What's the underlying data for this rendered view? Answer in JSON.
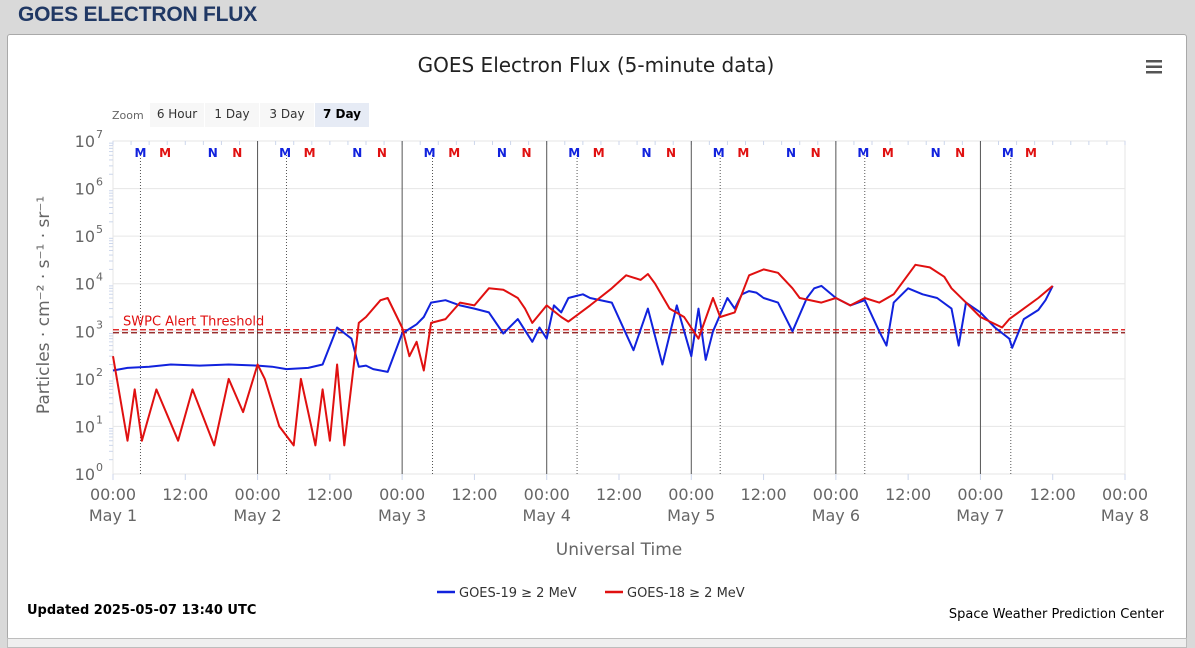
{
  "header": {
    "title": "GOES ELECTRON FLUX"
  },
  "zoom": {
    "label": "Zoom",
    "buttons": [
      {
        "label": "6 Hour",
        "active": false
      },
      {
        "label": "1 Day",
        "active": false
      },
      {
        "label": "3 Day",
        "active": false
      },
      {
        "label": "7 Day",
        "active": true
      }
    ]
  },
  "footer": {
    "updated": "Updated 2025-05-07 13:40 UTC",
    "credit": "Space Weather Prediction Center"
  },
  "colors": {
    "goes19": "#1122dd",
    "goes18": "#e01010",
    "grid": "#e6e6e6",
    "axis_text": "#666666"
  },
  "menu_icon": "hamburger-menu-icon",
  "chart_data": {
    "type": "line",
    "title": "GOES Electron Flux (5-minute data)",
    "xlabel": "Universal Time",
    "ylabel": "Particles · cm⁻² · s⁻¹ · sr⁻¹",
    "y_scale": "log",
    "ylim": [
      1,
      10000000
    ],
    "xlim": [
      "2025-05-01 00:00",
      "2025-05-08 00:00"
    ],
    "y_ticks": [
      {
        "base": "10",
        "exp": "0"
      },
      {
        "base": "10",
        "exp": "1"
      },
      {
        "base": "10",
        "exp": "2"
      },
      {
        "base": "10",
        "exp": "3"
      },
      {
        "base": "10",
        "exp": "4"
      },
      {
        "base": "10",
        "exp": "5"
      },
      {
        "base": "10",
        "exp": "6"
      },
      {
        "base": "10",
        "exp": "7"
      }
    ],
    "x_ticks": [
      {
        "time": "00:00",
        "date": "May 1"
      },
      {
        "time": "12:00",
        "date": ""
      },
      {
        "time": "00:00",
        "date": "May 2"
      },
      {
        "time": "12:00",
        "date": ""
      },
      {
        "time": "00:00",
        "date": "May 3"
      },
      {
        "time": "12:00",
        "date": ""
      },
      {
        "time": "00:00",
        "date": "May 4"
      },
      {
        "time": "12:00",
        "date": ""
      },
      {
        "time": "00:00",
        "date": "May 5"
      },
      {
        "time": "12:00",
        "date": ""
      },
      {
        "time": "00:00",
        "date": "May 6"
      },
      {
        "time": "12:00",
        "date": ""
      },
      {
        "time": "00:00",
        "date": "May 7"
      },
      {
        "time": "12:00",
        "date": ""
      },
      {
        "time": "00:00",
        "date": "May 8"
      }
    ],
    "threshold": {
      "label": "SWPC Alert Threshold",
      "value": 1000
    },
    "markers": [
      {
        "letter": "M",
        "series": "GOES-19",
        "day": 0.19
      },
      {
        "letter": "M",
        "series": "GOES-18",
        "day": 0.36
      },
      {
        "letter": "N",
        "series": "GOES-19",
        "day": 0.69
      },
      {
        "letter": "N",
        "series": "GOES-18",
        "day": 0.86
      },
      {
        "letter": "M",
        "series": "GOES-19",
        "day": 1.19
      },
      {
        "letter": "M",
        "series": "GOES-18",
        "day": 1.36
      },
      {
        "letter": "N",
        "series": "GOES-19",
        "day": 1.69
      },
      {
        "letter": "N",
        "series": "GOES-18",
        "day": 1.86
      },
      {
        "letter": "M",
        "series": "GOES-19",
        "day": 2.19
      },
      {
        "letter": "M",
        "series": "GOES-18",
        "day": 2.36
      },
      {
        "letter": "N",
        "series": "GOES-19",
        "day": 2.69
      },
      {
        "letter": "N",
        "series": "GOES-18",
        "day": 2.86
      },
      {
        "letter": "M",
        "series": "GOES-19",
        "day": 3.19
      },
      {
        "letter": "M",
        "series": "GOES-18",
        "day": 3.36
      },
      {
        "letter": "N",
        "series": "GOES-19",
        "day": 3.69
      },
      {
        "letter": "N",
        "series": "GOES-18",
        "day": 3.86
      },
      {
        "letter": "M",
        "series": "GOES-19",
        "day": 4.19
      },
      {
        "letter": "M",
        "series": "GOES-18",
        "day": 4.36
      },
      {
        "letter": "N",
        "series": "GOES-19",
        "day": 4.69
      },
      {
        "letter": "N",
        "series": "GOES-18",
        "day": 4.86
      },
      {
        "letter": "M",
        "series": "GOES-19",
        "day": 5.19
      },
      {
        "letter": "M",
        "series": "GOES-18",
        "day": 5.36
      },
      {
        "letter": "N",
        "series": "GOES-19",
        "day": 5.69
      },
      {
        "letter": "N",
        "series": "GOES-18",
        "day": 5.86
      },
      {
        "letter": "M",
        "series": "GOES-19",
        "day": 6.19
      },
      {
        "letter": "M",
        "series": "GOES-18",
        "day": 6.35
      }
    ],
    "noon_lines_days": [
      0.19,
      1.2,
      2.21,
      3.21,
      4.2,
      5.2,
      6.21
    ],
    "midnight_lines_days": [
      1,
      2,
      3,
      4,
      5,
      6
    ],
    "series": [
      {
        "name": "GOES-19 ≥ 2 MeV",
        "color": "#1122dd",
        "days": [
          0,
          0.1,
          0.25,
          0.4,
          0.6,
          0.8,
          1.0,
          1.1,
          1.2,
          1.35,
          1.45,
          1.55,
          1.65,
          1.7,
          1.75,
          1.8,
          1.85,
          1.9,
          2.0,
          2.1,
          2.15,
          2.2,
          2.3,
          2.4,
          2.5,
          2.6,
          2.7,
          2.8,
          2.9,
          2.95,
          3.0,
          3.05,
          3.1,
          3.15,
          3.2,
          3.25,
          3.3,
          3.45,
          3.6,
          3.7,
          3.8,
          3.9,
          4.0,
          4.05,
          4.1,
          4.15,
          4.25,
          4.3,
          4.35,
          4.4,
          4.45,
          4.5,
          4.6,
          4.7,
          4.8,
          4.85,
          4.9,
          5.0,
          5.1,
          5.2,
          5.3,
          5.35,
          5.4,
          5.5,
          5.6,
          5.7,
          5.8,
          5.85,
          5.9,
          6.0,
          6.1,
          6.2,
          6.22,
          6.3,
          6.4,
          6.45,
          6.5
        ],
        "values": [
          150,
          170,
          180,
          200,
          190,
          200,
          190,
          180,
          160,
          170,
          200,
          1200,
          700,
          180,
          190,
          160,
          150,
          140,
          900,
          1400,
          2000,
          4000,
          4500,
          3500,
          3000,
          2500,
          900,
          1800,
          600,
          1200,
          700,
          3500,
          2500,
          5000,
          5500,
          6000,
          5000,
          4000,
          400,
          3000,
          200,
          3500,
          300,
          3000,
          250,
          1000,
          5000,
          3000,
          6000,
          7000,
          6500,
          5000,
          4000,
          1000,
          5000,
          8000,
          9000,
          5000,
          3500,
          4500,
          1000,
          500,
          4000,
          8000,
          6000,
          5000,
          3000,
          500,
          4000,
          2500,
          1200,
          700,
          450,
          1800,
          2800,
          4500,
          9000
        ]
      },
      {
        "name": "GOES-18 ≥ 2 MeV",
        "color": "#e01010",
        "days": [
          0,
          0.1,
          0.15,
          0.2,
          0.3,
          0.45,
          0.55,
          0.7,
          0.8,
          0.9,
          1.0,
          1.05,
          1.15,
          1.25,
          1.3,
          1.35,
          1.4,
          1.45,
          1.5,
          1.55,
          1.6,
          1.7,
          1.75,
          1.8,
          1.85,
          1.9,
          2.0,
          2.05,
          2.1,
          2.15,
          2.2,
          2.3,
          2.4,
          2.5,
          2.6,
          2.7,
          2.8,
          2.85,
          2.9,
          3.0,
          3.1,
          3.15,
          3.3,
          3.45,
          3.55,
          3.65,
          3.7,
          3.75,
          3.85,
          3.95,
          4.05,
          4.15,
          4.2,
          4.3,
          4.4,
          4.5,
          4.6,
          4.7,
          4.75,
          4.9,
          5.0,
          5.1,
          5.2,
          5.3,
          5.4,
          5.55,
          5.65,
          5.75,
          5.8,
          5.9,
          6.0,
          6.15,
          6.2,
          6.3,
          6.4,
          6.5
        ],
        "values": [
          300,
          5,
          60,
          5,
          60,
          5,
          60,
          4,
          100,
          20,
          200,
          100,
          10,
          4,
          100,
          20,
          4,
          60,
          5,
          200,
          4,
          1500,
          2000,
          3000,
          4500,
          5000,
          1200,
          300,
          600,
          150,
          1500,
          1800,
          4000,
          3500,
          8000,
          7500,
          5000,
          3000,
          1500,
          3500,
          2000,
          1600,
          3500,
          8000,
          15000,
          12000,
          16000,
          10000,
          3000,
          2000,
          700,
          5000,
          2000,
          2500,
          15000,
          20000,
          17000,
          8000,
          5000,
          4000,
          5000,
          3500,
          5000,
          4000,
          6000,
          25000,
          22000,
          14000,
          8000,
          4000,
          2000,
          1200,
          1800,
          3000,
          5000,
          9000
        ]
      }
    ]
  }
}
